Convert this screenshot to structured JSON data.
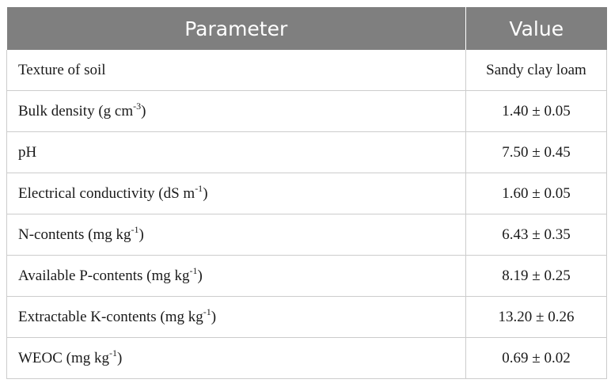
{
  "table": {
    "headers": [
      "Parameter",
      "Value"
    ],
    "rows": [
      {
        "param": "Texture of soil",
        "unit_base": "",
        "unit_sup": "",
        "unit_close": "",
        "value": "Sandy clay loam"
      },
      {
        "param": "Bulk density (g cm",
        "unit_base": "",
        "unit_sup": "-3",
        "unit_close": ")",
        "value": "1.40 ± 0.05"
      },
      {
        "param": "pH",
        "unit_base": "",
        "unit_sup": "",
        "unit_close": "",
        "value": "7.50 ± 0.45"
      },
      {
        "param": "Electrical conductivity (dS m",
        "unit_base": "",
        "unit_sup": "-1",
        "unit_close": ")",
        "value": "1.60 ± 0.05"
      },
      {
        "param": "N-contents (mg kg",
        "unit_base": "",
        "unit_sup": "-1",
        "unit_close": ")",
        "value": "6.43 ± 0.35"
      },
      {
        "param": "Available P-contents (mg kg",
        "unit_base": "",
        "unit_sup": "-1",
        "unit_close": ")",
        "value": "8.19 ± 0.25"
      },
      {
        "param": "Extractable K-contents (mg kg",
        "unit_base": "",
        "unit_sup": "-1",
        "unit_close": ")",
        "value": "13.20 ± 0.26"
      },
      {
        "param": "WEOC (mg kg",
        "unit_base": "",
        "unit_sup": "-1",
        "unit_close": ")",
        "value": "0.69 ± 0.02"
      }
    ]
  },
  "colors": {
    "header_bg": "#7f7f7f",
    "header_text": "#ffffff",
    "grid": "#cccccc"
  }
}
